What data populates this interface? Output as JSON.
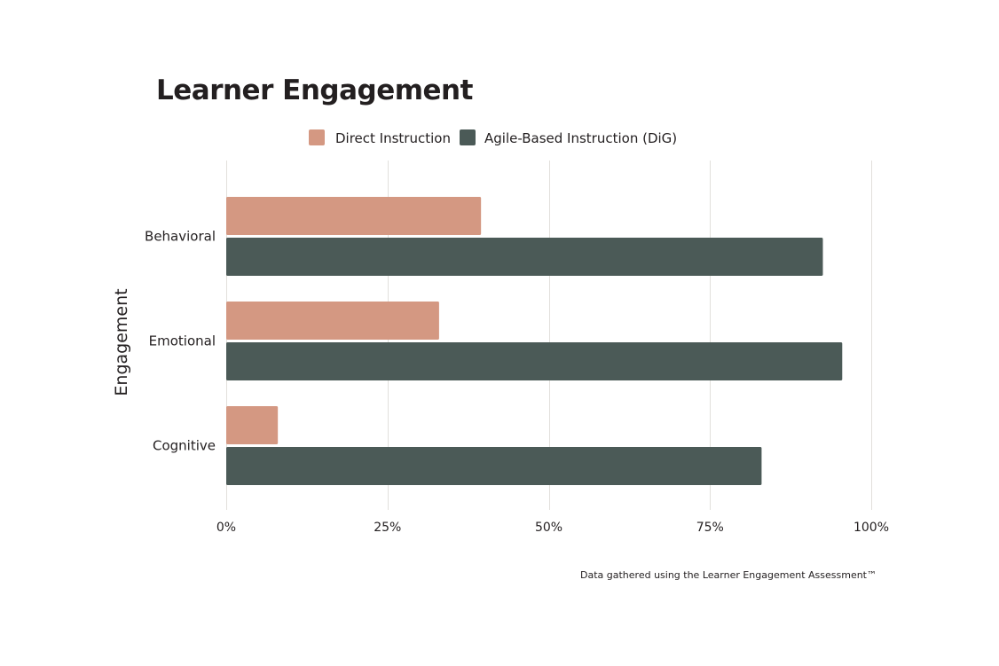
{
  "chart_data": {
    "type": "bar",
    "orientation": "horizontal",
    "title": "Learner Engagement",
    "ylabel": "Engagement",
    "xlabel": "",
    "categories": [
      "Behavioral",
      "Emotional",
      "Cognitive"
    ],
    "series": [
      {
        "name": "Direct Instruction",
        "color": "#d49882",
        "values": [
          39.5,
          33,
          8
        ]
      },
      {
        "name": "Agile-Based Instruction (DiG)",
        "color": "#4b5a57",
        "values": [
          92.5,
          95.5,
          83
        ]
      }
    ],
    "xlim": [
      0,
      100
    ],
    "xticks": [
      0,
      25,
      50,
      75,
      100
    ],
    "xtick_labels": [
      "0%",
      "25%",
      "50%",
      "75%",
      "100%"
    ],
    "grid": "vertical",
    "legend_position": "top-center",
    "footnote": "Data gathered using the Learner Engagement Assessment™"
  }
}
